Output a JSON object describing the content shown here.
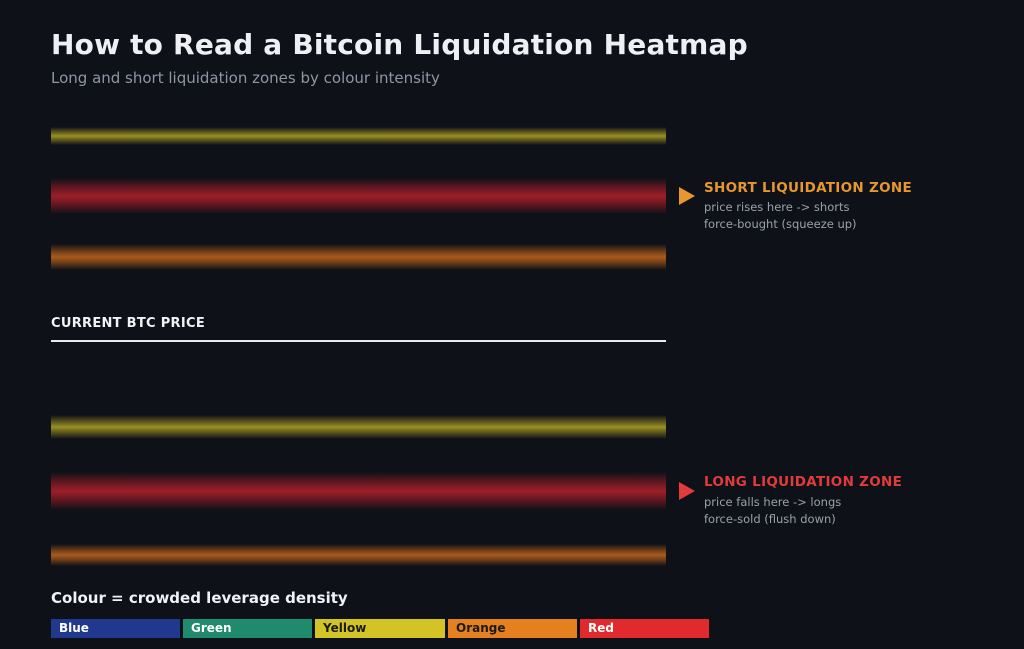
{
  "header": {
    "title": "How to Read a Bitcoin Liquidation Heatmap",
    "subtitle": "Long and short liquidation zones by colour intensity"
  },
  "price": {
    "label": "CURRENT BTC PRICE"
  },
  "bands": [
    {
      "zone": "short",
      "color": "yellow"
    },
    {
      "zone": "short",
      "color": "red"
    },
    {
      "zone": "short",
      "color": "orange"
    },
    {
      "zone": "long",
      "color": "yellow"
    },
    {
      "zone": "long",
      "color": "red"
    },
    {
      "zone": "long",
      "color": "orange"
    }
  ],
  "zones": {
    "short": {
      "title": "SHORT LIQUIDATION ZONE",
      "line1": "price rises here -> shorts",
      "line2": "force-bought (squeeze up)",
      "color": "#e8962e"
    },
    "long": {
      "title": "LONG LIQUIDATION ZONE",
      "line1": "price falls here -> longs",
      "line2": "force-sold (flush down)",
      "color": "#e23b3b"
    }
  },
  "legend": {
    "title": "Colour = crowded leverage density",
    "items": [
      {
        "label": "Blue",
        "color": "#21388f"
      },
      {
        "label": "Green",
        "color": "#1f8a6c"
      },
      {
        "label": "Yellow",
        "color": "#d1c424"
      },
      {
        "label": "Orange",
        "color": "#e5801f"
      },
      {
        "label": "Red",
        "color": "#e02a2d"
      }
    ]
  }
}
